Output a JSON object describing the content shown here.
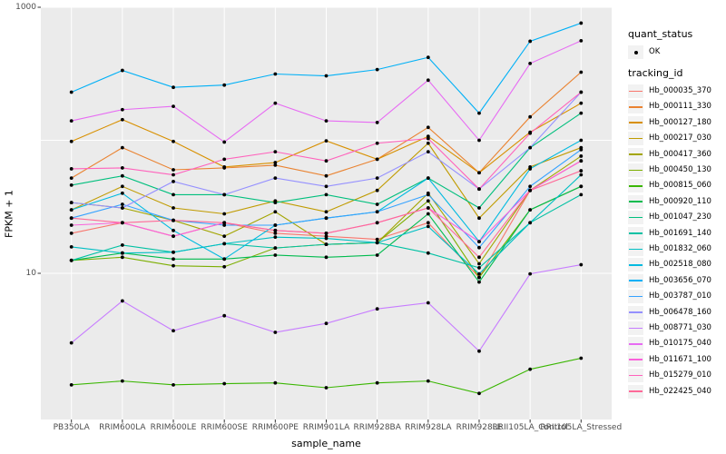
{
  "figure": {
    "y_axis": {
      "label": "FPKM + 1",
      "tick_labels": [
        "1000",
        "10"
      ],
      "tick_values": [
        1000,
        10
      ]
    },
    "x_axis": {
      "label": "sample_name"
    },
    "legend": {
      "quant_status": {
        "title": "quant_status",
        "items": [
          {
            "label": "OK",
            "marker": "black-point"
          }
        ]
      },
      "tracking_id": {
        "title": "tracking_id"
      }
    },
    "colors": {
      "panel_bg": "#EBEBEB",
      "grid": "#FFFFFF",
      "legend_key_bg": "#F2F2F2",
      "tick_text": "#4D4D4D",
      "point": "#000000"
    }
  },
  "chart_data": {
    "type": "line",
    "title": "",
    "xlabel": "sample_name",
    "ylabel": "FPKM + 1",
    "y_scale": "log10",
    "ylim": [
      1,
      1000
    ],
    "y_breaks_labeled": [
      1000,
      10
    ],
    "y_gridlines": [
      1000,
      100,
      10
    ],
    "grid": true,
    "legend_position": "right",
    "point_marker": "black-circle",
    "x_categories": [
      "PB350LA",
      "RRIM600LA",
      "RRIM600LE",
      "RRIM600SE",
      "RRIM600PE",
      "RRIM901LA",
      "RRIM928BA",
      "RRIM928LA",
      "RRIM928LE",
      "RRII105LA_Control",
      "RRII105LA_Stressed"
    ],
    "series": [
      {
        "name": "Hb_000035_370",
        "color": "#F8766D",
        "values": [
          20,
          24,
          19,
          24,
          20,
          19,
          18,
          24,
          9.3,
          42,
          70
        ]
      },
      {
        "name": "Hb_000111_330",
        "color": "#EA8331",
        "values": [
          52,
          88,
          60,
          62,
          65,
          54,
          72,
          125,
          57,
          150,
          325
        ]
      },
      {
        "name": "Hb_000127_180",
        "color": "#D89000",
        "values": [
          98,
          143,
          98,
          63,
          68,
          99,
          72,
          107,
          57,
          115,
          190
        ]
      },
      {
        "name": "Hb_000217_030",
        "color": "#C09B00",
        "values": [
          30,
          45,
          31,
          28,
          35,
          29,
          42,
          95,
          26,
          63,
          88
        ]
      },
      {
        "name": "Hb_000417_360",
        "color": "#A3A500",
        "values": [
          34,
          31,
          25,
          19,
          29,
          16.5,
          17,
          40,
          11.8,
          42,
          76
        ]
      },
      {
        "name": "Hb_000450_130",
        "color": "#7CAE00",
        "values": [
          12.5,
          13.2,
          11.4,
          11.2,
          15.5,
          16.5,
          17,
          35,
          9.3,
          30,
          45
        ]
      },
      {
        "name": "Hb_000815_060",
        "color": "#39B600",
        "values": [
          1.45,
          1.55,
          1.45,
          1.48,
          1.5,
          1.38,
          1.5,
          1.55,
          1.25,
          1.9,
          2.3
        ]
      },
      {
        "name": "Hb_000920_110",
        "color": "#00BB4E",
        "values": [
          12.5,
          14.2,
          12.8,
          12.8,
          13.7,
          13.2,
          13.7,
          28,
          8.6,
          30,
          45
        ]
      },
      {
        "name": "Hb_001047_230",
        "color": "#00BF7D",
        "values": [
          46,
          54,
          39,
          39,
          34,
          39,
          33,
          52,
          31,
          88,
          160
        ]
      },
      {
        "name": "Hb_001691_140",
        "color": "#00C1A3",
        "values": [
          12.5,
          16.3,
          14.4,
          16.7,
          15.5,
          16.5,
          17,
          14.2,
          11,
          24,
          39
        ]
      },
      {
        "name": "Hb_001832_060",
        "color": "#00BFC4",
        "values": [
          15.8,
          14.2,
          14.4,
          16.7,
          18.7,
          18.3,
          17,
          22.5,
          9.9,
          24,
          55
        ]
      },
      {
        "name": "Hb_002518_080",
        "color": "#00BAE0",
        "values": [
          30,
          40,
          21,
          12.8,
          23,
          26,
          29,
          52,
          17.3,
          61,
          100
        ]
      },
      {
        "name": "Hb_003656_070",
        "color": "#00B0F6",
        "values": [
          230,
          335,
          250,
          260,
          315,
          305,
          340,
          420,
          160,
          555,
          760
        ]
      },
      {
        "name": "Hb_003787_010",
        "color": "#35A2FF",
        "values": [
          26,
          33,
          25,
          23,
          23,
          26,
          29,
          39,
          15.6,
          45,
          85
        ]
      },
      {
        "name": "Hb_006478_160",
        "color": "#9590FF",
        "values": [
          34,
          31,
          49,
          39,
          52,
          45,
          52,
          82,
          43,
          88,
          230
        ]
      },
      {
        "name": "Hb_008771_030",
        "color": "#C77CFF",
        "values": [
          3,
          6.2,
          3.7,
          4.8,
          3.6,
          4.2,
          5.4,
          6,
          2.6,
          9.9,
          11.6
        ]
      },
      {
        "name": "Hb_010175_040",
        "color": "#E76BF3",
        "values": [
          140,
          170,
          180,
          97,
          190,
          140,
          136,
          283,
          100,
          378,
          560
        ]
      },
      {
        "name": "Hb_011671_100",
        "color": "#FA62DB",
        "values": [
          23,
          24,
          19,
          24,
          21,
          20,
          24,
          31,
          17.3,
          42,
          70
        ]
      },
      {
        "name": "Hb_015279_010",
        "color": "#FF62BC",
        "values": [
          61,
          62,
          55,
          72,
          82,
          70,
          95,
          103,
          43,
          113,
          230
        ]
      },
      {
        "name": "Hb_022425_040",
        "color": "#FF6A98",
        "values": [
          26,
          24,
          25,
          24,
          21,
          20,
          24,
          31,
          13.2,
          42,
          59
        ]
      }
    ]
  }
}
